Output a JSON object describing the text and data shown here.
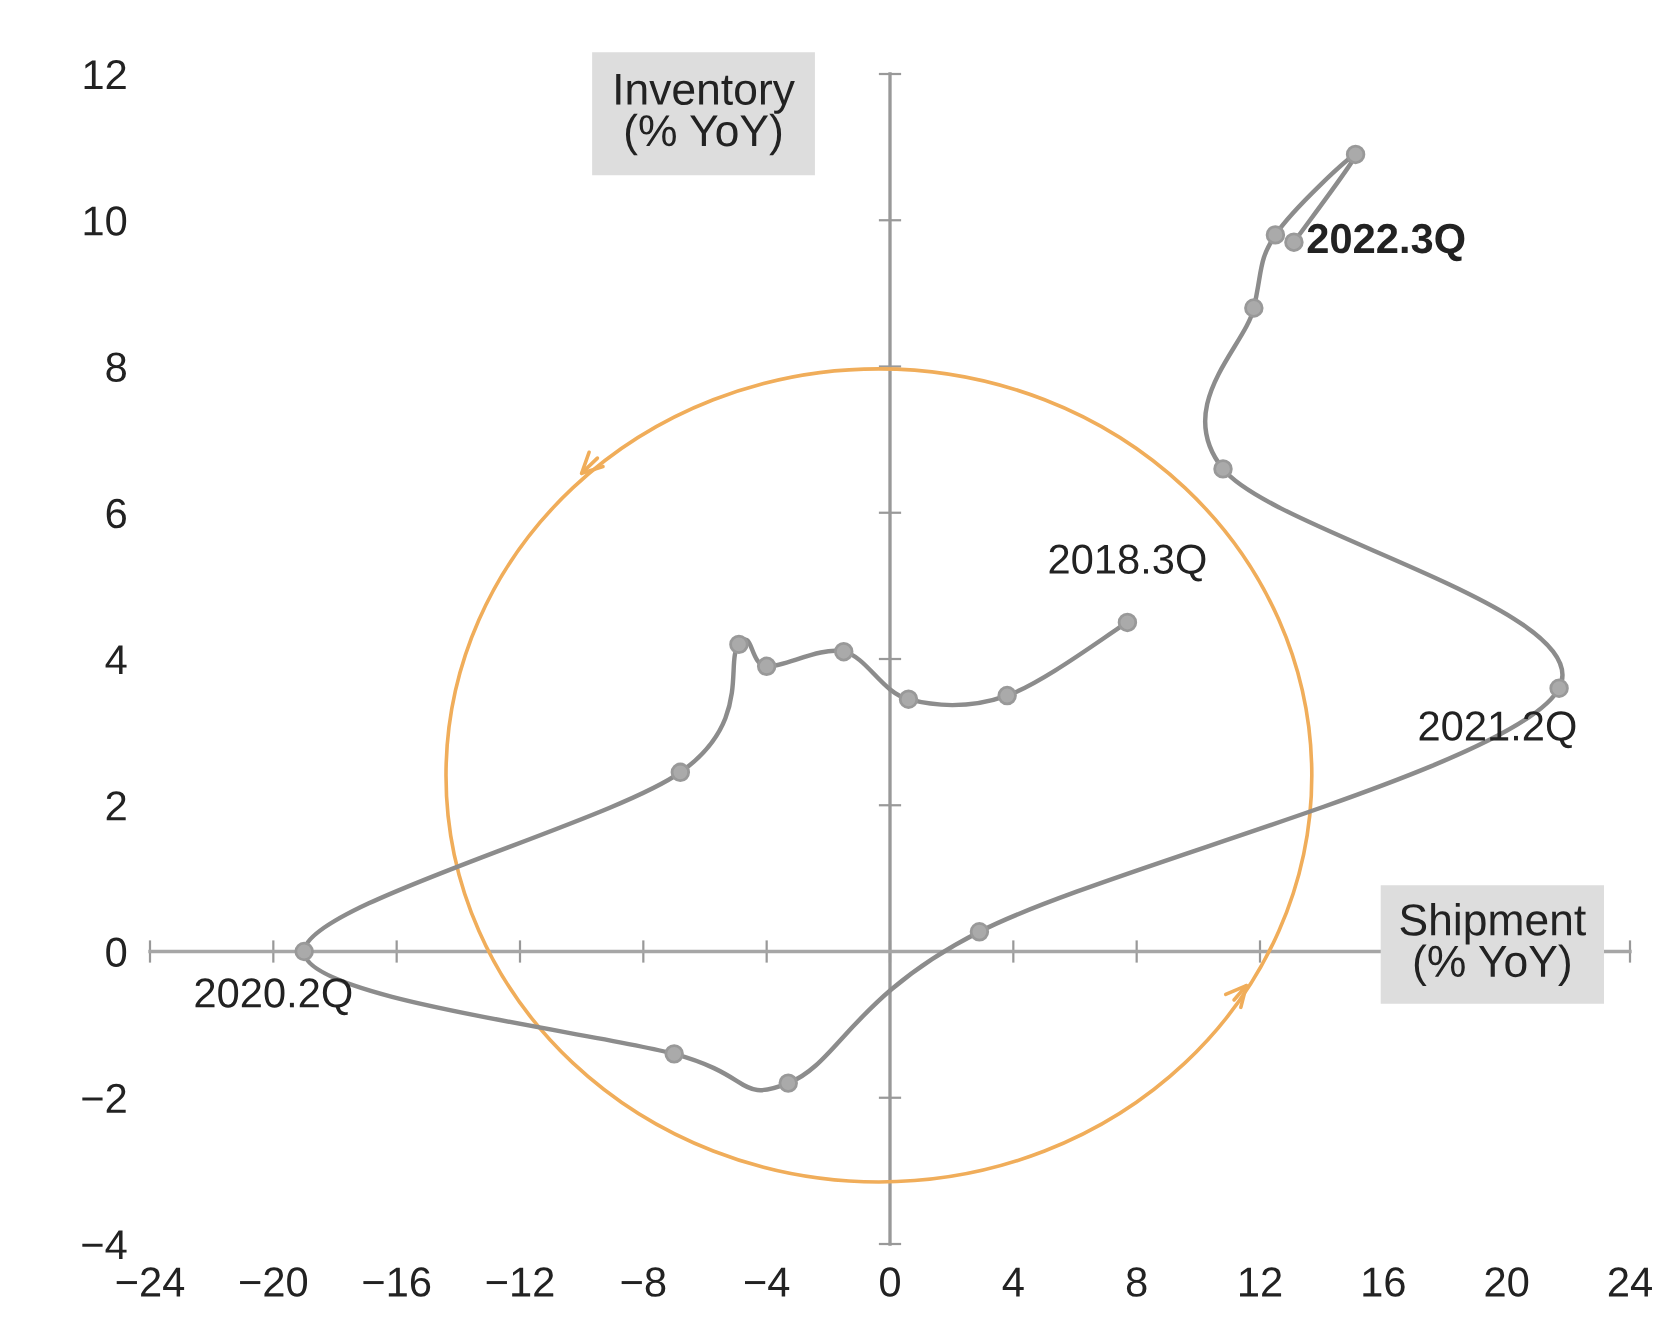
{
  "chart_data": {
    "type": "line",
    "xlabel": "Shipment\n(% YoY)",
    "ylabel": "Inventory\n(% YoY)",
    "series": [
      {
        "color": "#8c8c8c",
        "x": [
          7.7,
          3.8,
          0.6,
          -1.5,
          -4.0,
          -4.9,
          -6.8,
          -19.0,
          -7.0,
          -3.3,
          2.9,
          21.7,
          10.8,
          11.8,
          12.5,
          15.1,
          13.1
        ],
        "values": [
          4.5,
          3.5,
          3.45,
          4.1,
          3.9,
          4.2,
          2.45,
          0.0,
          -1.4,
          -1.8,
          0.27,
          3.6,
          6.6,
          8.8,
          9.8,
          10.9,
          9.7
        ]
      }
    ],
    "ref_lines": [
      {
        "axis": "x",
        "value": 0,
        "color": "#999999"
      },
      {
        "axis": "y",
        "value": 0,
        "color": "#a6a6a6"
      }
    ],
    "marker": "circle",
    "line_style": "solid",
    "grid": false,
    "legend": false,
    "xlim": [
      -24,
      24
    ],
    "xticks": [
      -24,
      -20,
      -16,
      -12,
      -8,
      -4,
      0,
      4,
      8,
      12,
      16,
      20,
      24
    ],
    "ylim": [
      -4,
      12
    ],
    "yticks": [
      -4,
      -2,
      0,
      2,
      4,
      6,
      8,
      10,
      12
    ],
    "annotations": [
      {
        "text": "2018.3Q",
        "x": 7.7,
        "y": 4.5
      },
      {
        "text": "2020.2Q",
        "x": -19.0,
        "y": 0.0
      },
      {
        "text": "2021.2Q",
        "x": 21.7,
        "y": 3.6
      },
      {
        "text": "2022.3Q",
        "x": 13.1,
        "y": 9.7
      }
    ]
  }
}
